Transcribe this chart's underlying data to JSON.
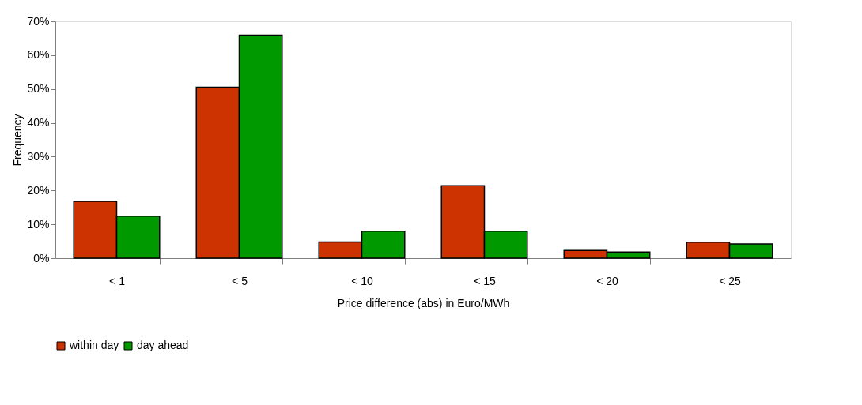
{
  "chart_data": {
    "type": "bar",
    "xlabel": "Price difference (abs) in Euro/MWh",
    "ylabel": "Frequency",
    "categories": [
      "< 1",
      "< 5",
      "< 10",
      "< 15",
      "< 20",
      "< 25"
    ],
    "series": [
      {
        "name": "within day",
        "color": "#cc3300",
        "values": [
          16.8,
          50.5,
          4.8,
          21.4,
          2.3,
          4.7
        ]
      },
      {
        "name": "day ahead",
        "color": "#009900",
        "values": [
          12.4,
          65.9,
          8.0,
          8.0,
          1.8,
          4.2
        ]
      }
    ],
    "ylim": [
      0,
      70
    ],
    "yticks": [
      {
        "value": 0,
        "label": "0%"
      },
      {
        "value": 10,
        "label": "10%"
      },
      {
        "value": 20,
        "label": "20%"
      },
      {
        "value": 30,
        "label": "30%"
      },
      {
        "value": 40,
        "label": "40%"
      },
      {
        "value": 50,
        "label": "50%"
      },
      {
        "value": 60,
        "label": "60%"
      },
      {
        "value": 70,
        "label": "70%"
      }
    ],
    "grid": false,
    "legend": "bottom"
  }
}
